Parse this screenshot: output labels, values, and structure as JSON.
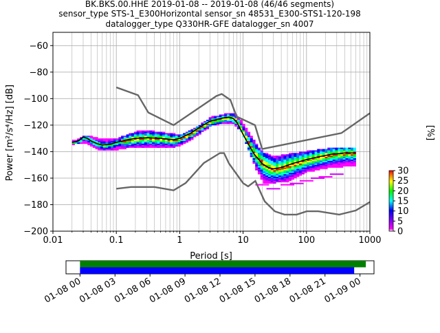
{
  "title_lines": [
    "BK.BKS.00.HHE   2019-01-08 -- 2019-01-08  (46/46 segments)",
    "sensor_type STS-1_E300Horizontal sensor_sn 48531_E300-STS1-120-198",
    "datalogger_type Q330HR-GFE datalogger_sn 4007"
  ],
  "chart_data": [
    {
      "type": "heatmap",
      "title": "BK.BKS.00.HHE   2019-01-08 -- 2019-01-08  (46/46 segments)",
      "xlabel": "Period [s]",
      "ylabel": "Power [m²/s⁴/Hz] [dB]",
      "xscale": "log",
      "xlim": [
        0.01,
        1000
      ],
      "ylim": [
        -200,
        -50
      ],
      "grid": true,
      "x_ticks": [
        {
          "value": 0.01,
          "label": "0.01"
        },
        {
          "value": 0.1,
          "label": "0.1"
        },
        {
          "value": 1,
          "label": "1"
        },
        {
          "value": 10,
          "label": "10"
        },
        {
          "value": 100,
          "label": "100"
        },
        {
          "value": 1000,
          "label": "1000"
        }
      ],
      "y_ticks": [
        {
          "value": -60,
          "label": "−60"
        },
        {
          "value": -80,
          "label": "−80"
        },
        {
          "value": -100,
          "label": "−100"
        },
        {
          "value": -120,
          "label": "−120"
        },
        {
          "value": -140,
          "label": "−140"
        },
        {
          "value": -160,
          "label": "−160"
        },
        {
          "value": -180,
          "label": "−180"
        },
        {
          "value": -200,
          "label": "−200"
        }
      ],
      "colorbar": {
        "label": "[%]",
        "range": [
          0,
          30
        ],
        "ticks": [
          {
            "value": 0,
            "label": "0"
          },
          {
            "value": 5,
            "label": "5"
          },
          {
            "value": 10,
            "label": "10"
          },
          {
            "value": 15,
            "label": "15"
          },
          {
            "value": 20,
            "label": "20"
          },
          {
            "value": 25,
            "label": "25"
          },
          {
            "value": 30,
            "label": "30"
          }
        ]
      },
      "nhnm": [
        [
          0.1,
          -91.5
        ],
        [
          0.22,
          -97.4
        ],
        [
          0.32,
          -110.5
        ],
        [
          0.8,
          -120
        ],
        [
          3.8,
          -98
        ],
        [
          4.6,
          -96.5
        ],
        [
          6.3,
          -101
        ],
        [
          7.9,
          -113.5
        ],
        [
          15.4,
          -120
        ],
        [
          20,
          -138
        ],
        [
          354.8,
          -126
        ],
        [
          1000,
          -111
        ]
      ],
      "nlnm": [
        [
          0.1,
          -168
        ],
        [
          0.17,
          -166.7
        ],
        [
          0.4,
          -166.7
        ],
        [
          0.8,
          -169.2
        ],
        [
          1.24,
          -163.7
        ],
        [
          2.4,
          -148.6
        ],
        [
          4.3,
          -141.1
        ],
        [
          5,
          -141.1
        ],
        [
          6,
          -149
        ],
        [
          10,
          -163.8
        ],
        [
          12,
          -166.2
        ],
        [
          15.6,
          -162.1
        ],
        [
          21.9,
          -177.5
        ],
        [
          31.6,
          -185
        ],
        [
          45,
          -187.5
        ],
        [
          70,
          -187.5
        ],
        [
          101,
          -185
        ],
        [
          154,
          -185
        ],
        [
          328,
          -187.5
        ],
        [
          600,
          -184.4
        ],
        [
          1000,
          -178
        ]
      ],
      "mean_curve": [
        [
          0.02,
          -133
        ],
        [
          0.025,
          -132
        ],
        [
          0.03,
          -129
        ],
        [
          0.035,
          -130
        ],
        [
          0.04,
          -132
        ],
        [
          0.05,
          -134
        ],
        [
          0.06,
          -135
        ],
        [
          0.08,
          -134.5
        ],
        [
          0.1,
          -133
        ],
        [
          0.15,
          -131
        ],
        [
          0.2,
          -130
        ],
        [
          0.3,
          -129.5
        ],
        [
          0.5,
          -130
        ],
        [
          0.8,
          -131
        ],
        [
          1.0,
          -130
        ],
        [
          1.5,
          -126
        ],
        [
          2,
          -122
        ],
        [
          3,
          -117
        ],
        [
          4,
          -115.5
        ],
        [
          5,
          -114.5
        ],
        [
          6,
          -114
        ],
        [
          7,
          -115
        ],
        [
          8,
          -118
        ],
        [
          10,
          -127
        ],
        [
          12,
          -134
        ],
        [
          15,
          -142
        ],
        [
          20,
          -149
        ],
        [
          25,
          -152
        ],
        [
          30,
          -153
        ],
        [
          40,
          -152
        ],
        [
          60,
          -149
        ],
        [
          100,
          -146
        ],
        [
          150,
          -144
        ],
        [
          250,
          -142
        ],
        [
          400,
          -141
        ],
        [
          600,
          -141
        ]
      ],
      "density_band": [
        [
          0.02,
          -134,
          -131
        ],
        [
          0.03,
          -133,
          -127
        ],
        [
          0.05,
          -138,
          -129
        ],
        [
          0.08,
          -139,
          -130
        ],
        [
          0.1,
          -138,
          -129
        ],
        [
          0.2,
          -136,
          -124
        ],
        [
          0.4,
          -136,
          -124
        ],
        [
          0.8,
          -136,
          -126
        ],
        [
          1.0,
          -135,
          -127
        ],
        [
          1.5,
          -130,
          -122
        ],
        [
          2,
          -126,
          -119
        ],
        [
          3,
          -120,
          -113
        ],
        [
          5,
          -118,
          -111
        ],
        [
          7,
          -119,
          -111
        ],
        [
          9,
          -125,
          -116
        ],
        [
          12,
          -140,
          -125
        ],
        [
          15,
          -152,
          -133
        ],
        [
          20,
          -163,
          -140
        ],
        [
          30,
          -163,
          -143
        ],
        [
          50,
          -162,
          -141
        ],
        [
          100,
          -155,
          -139
        ],
        [
          200,
          -152,
          -137
        ],
        [
          600,
          -150,
          -136
        ]
      ],
      "psd_scatter": [
        [
          20,
          -165
        ],
        [
          30,
          -168
        ],
        [
          50,
          -165
        ],
        [
          70,
          -164
        ],
        [
          100,
          -162
        ],
        [
          150,
          -160
        ],
        [
          200,
          -159
        ],
        [
          300,
          -157
        ]
      ]
    },
    {
      "type": "timeline",
      "x_ticks": [
        {
          "value": 0,
          "label": "01-08 00"
        },
        {
          "value": 3,
          "label": "01-08 03"
        },
        {
          "value": 6,
          "label": "01-08 06"
        },
        {
          "value": 9,
          "label": "01-08 09"
        },
        {
          "value": 12,
          "label": "01-08 12"
        },
        {
          "value": 15,
          "label": "01-08 15"
        },
        {
          "value": 18,
          "label": "01-08 18"
        },
        {
          "value": 21,
          "label": "01-08 21"
        },
        {
          "value": 24,
          "label": "01-09 00"
        }
      ],
      "xlim": [
        -1.2,
        25.2
      ],
      "bars": [
        {
          "color": "#008000",
          "start": 0,
          "end": 24.5
        },
        {
          "color": "#0000ff",
          "start": 0,
          "end": 23.5
        }
      ]
    }
  ]
}
